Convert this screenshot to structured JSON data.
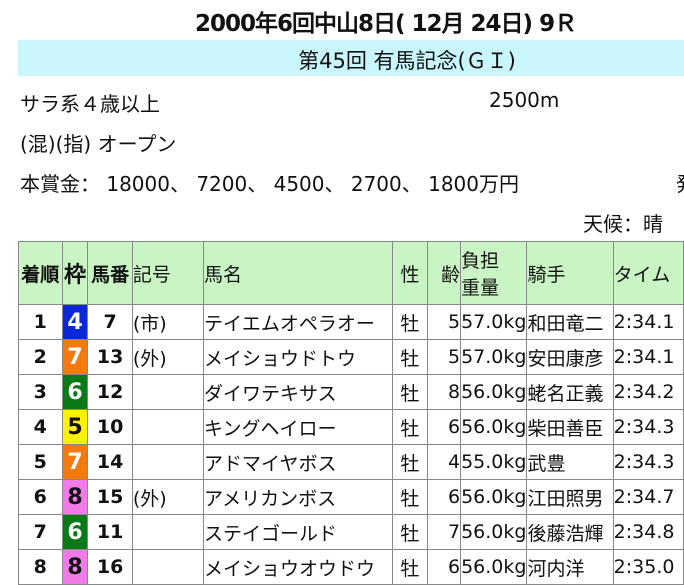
{
  "header": {
    "title": "2000年6回中山8日( 12月 24日) 9Ｒ",
    "race_name": "第45回 有馬記念(ＧＩ)"
  },
  "info": {
    "class": "サラ系４歳以上",
    "distance": "2500m",
    "conditions": "(混)(指) オープン",
    "prize": "本賞金： 18000、 7200、 4500、 2700、 1800万円",
    "cut_text": "発",
    "weather": "天候：晴"
  },
  "table": {
    "headers": [
      "着順",
      "枠",
      "馬番",
      "記号",
      "馬名",
      "性",
      "齢",
      "負担\n重量",
      "騎手",
      "タイム"
    ],
    "header_weight_top": "負担",
    "header_weight_bottom": "重量",
    "frame_colors": {
      "4": "#0a28d8",
      "5": "#fff200",
      "6": "#0a7a18",
      "7": "#f47a10",
      "8": "#f07ae8"
    },
    "rows": [
      {
        "pos": "1",
        "frame": "4",
        "num": "7",
        "mark": "(市)",
        "name": "テイエムオペラオー",
        "sex": "牡",
        "age": "5",
        "weight": "57.0kg",
        "jockey": "和田竜二",
        "time": "2:34.1"
      },
      {
        "pos": "2",
        "frame": "7",
        "num": "13",
        "mark": "(外)",
        "name": "メイショウドトウ",
        "sex": "牡",
        "age": "5",
        "weight": "57.0kg",
        "jockey": "安田康彦",
        "time": "2:34.1"
      },
      {
        "pos": "3",
        "frame": "6",
        "num": "12",
        "mark": "",
        "name": "ダイワテキサス",
        "sex": "牡",
        "age": "8",
        "weight": "56.0kg",
        "jockey": "蛯名正義",
        "time": "2:34.2"
      },
      {
        "pos": "4",
        "frame": "5",
        "num": "10",
        "mark": "",
        "name": "キングヘイロー",
        "sex": "牡",
        "age": "6",
        "weight": "56.0kg",
        "jockey": "柴田善臣",
        "time": "2:34.3"
      },
      {
        "pos": "5",
        "frame": "7",
        "num": "14",
        "mark": "",
        "name": "アドマイヤボス",
        "sex": "牡",
        "age": "4",
        "weight": "55.0kg",
        "jockey": "武豊",
        "time": "2:34.3"
      },
      {
        "pos": "6",
        "frame": "8",
        "num": "15",
        "mark": "(外)",
        "name": "アメリカンボス",
        "sex": "牡",
        "age": "6",
        "weight": "56.0kg",
        "jockey": "江田照男",
        "time": "2:34.7"
      },
      {
        "pos": "7",
        "frame": "6",
        "num": "11",
        "mark": "",
        "name": "ステイゴールド",
        "sex": "牡",
        "age": "7",
        "weight": "56.0kg",
        "jockey": "後藤浩輝",
        "time": "2:34.8"
      },
      {
        "pos": "8",
        "frame": "8",
        "num": "16",
        "mark": "",
        "name": "メイショウオウドウ",
        "sex": "牡",
        "age": "6",
        "weight": "56.0kg",
        "jockey": "河内洋",
        "time": "2:35.0"
      }
    ]
  }
}
